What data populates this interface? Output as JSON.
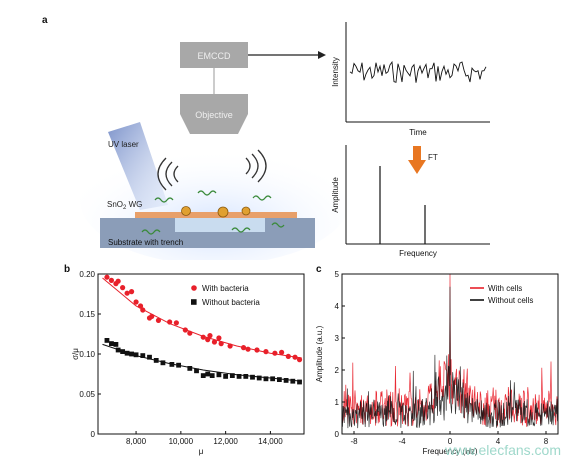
{
  "panel_a": {
    "letter": "a",
    "emccd_label": "EMCCD",
    "objective_label": "Objective",
    "uv_laser_label": "UV laser",
    "waveguide_label_main": "SnO",
    "waveguide_label_sub": "2",
    "waveguide_label_tail": " WG",
    "substrate_label": "Substrate with trench",
    "ft_label": "FT",
    "time_plot": {
      "ylabel": "Intensity",
      "xlabel": "Time"
    },
    "freq_plot": {
      "ylabel": "Amplitude",
      "xlabel": "Frequency"
    },
    "colors": {
      "box": "#a8a8a8",
      "substrate": "#8b9db8",
      "waveguide": "#e8a06a",
      "arrow": "#e87722",
      "particle": "#e0a030",
      "bacteria": "#3a8a3a"
    }
  },
  "chart_data": [
    {
      "id": "b",
      "letter": "b",
      "type": "scatter",
      "xlabel": "μ",
      "ylabel": "σ/μ",
      "xlim": [
        6300,
        15500
      ],
      "ylim": [
        0,
        0.2
      ],
      "xticks": [
        8000,
        10000,
        12000,
        14000
      ],
      "xtick_labels": [
        "8,000",
        "10,000",
        "12,000",
        "14,000"
      ],
      "yticks": [
        0,
        0.05,
        0.1,
        0.15,
        0.2
      ],
      "ytick_labels": [
        "0",
        "0.05",
        "0.10",
        "0.15",
        "0.20"
      ],
      "legend_position": "top-right",
      "series": [
        {
          "name": "With bacteria",
          "color": "#e8202a",
          "marker": "circle",
          "fit": [
            [
              6500,
              0.195
            ],
            [
              8000,
              0.16
            ],
            [
              9500,
              0.138
            ],
            [
              11000,
              0.122
            ],
            [
              12500,
              0.11
            ],
            [
              14000,
              0.101
            ],
            [
              15400,
              0.095
            ]
          ],
          "points": [
            [
              6700,
              0.196
            ],
            [
              6900,
              0.192
            ],
            [
              7100,
              0.188
            ],
            [
              7200,
              0.191
            ],
            [
              7400,
              0.183
            ],
            [
              7600,
              0.176
            ],
            [
              7800,
              0.178
            ],
            [
              8000,
              0.165
            ],
            [
              8200,
              0.16
            ],
            [
              8300,
              0.155
            ],
            [
              8600,
              0.145
            ],
            [
              8700,
              0.147
            ],
            [
              9000,
              0.142
            ],
            [
              9500,
              0.14
            ],
            [
              9800,
              0.139
            ],
            [
              10200,
              0.13
            ],
            [
              10400,
              0.126
            ],
            [
              11000,
              0.121
            ],
            [
              11200,
              0.118
            ],
            [
              11300,
              0.123
            ],
            [
              11500,
              0.115
            ],
            [
              11700,
              0.12
            ],
            [
              11800,
              0.113
            ],
            [
              12200,
              0.11
            ],
            [
              12800,
              0.108
            ],
            [
              13000,
              0.106
            ],
            [
              13400,
              0.105
            ],
            [
              13800,
              0.103
            ],
            [
              14200,
              0.101
            ],
            [
              14500,
              0.102
            ],
            [
              14800,
              0.097
            ],
            [
              15100,
              0.096
            ],
            [
              15300,
              0.093
            ]
          ]
        },
        {
          "name": "Without bacteria",
          "color": "#111111",
          "marker": "square",
          "fit": [
            [
              6500,
              0.112
            ],
            [
              8000,
              0.098
            ],
            [
              9500,
              0.088
            ],
            [
              11000,
              0.08
            ],
            [
              12500,
              0.074
            ],
            [
              14000,
              0.07
            ],
            [
              15400,
              0.066
            ]
          ],
          "points": [
            [
              6700,
              0.117
            ],
            [
              6900,
              0.113
            ],
            [
              7100,
              0.112
            ],
            [
              7200,
              0.105
            ],
            [
              7400,
              0.103
            ],
            [
              7600,
              0.101
            ],
            [
              7800,
              0.1
            ],
            [
              8000,
              0.099
            ],
            [
              8300,
              0.098
            ],
            [
              8600,
              0.096
            ],
            [
              8900,
              0.092
            ],
            [
              9200,
              0.089
            ],
            [
              9600,
              0.087
            ],
            [
              9900,
              0.086
            ],
            [
              10400,
              0.082
            ],
            [
              10700,
              0.079
            ],
            [
              11000,
              0.073
            ],
            [
              11200,
              0.075
            ],
            [
              11400,
              0.073
            ],
            [
              11700,
              0.074
            ],
            [
              12000,
              0.072
            ],
            [
              12300,
              0.073
            ],
            [
              12600,
              0.072
            ],
            [
              12900,
              0.072
            ],
            [
              13200,
              0.071
            ],
            [
              13500,
              0.07
            ],
            [
              13800,
              0.069
            ],
            [
              14100,
              0.069
            ],
            [
              14400,
              0.068
            ],
            [
              14700,
              0.067
            ],
            [
              15000,
              0.066
            ],
            [
              15300,
              0.065
            ]
          ]
        }
      ]
    },
    {
      "id": "c",
      "letter": "c",
      "type": "line",
      "xlabel": "Frequency (Hz)",
      "ylabel": "Amplitude (a.u.)",
      "xlim": [
        -9,
        9
      ],
      "ylim": [
        0,
        5
      ],
      "xticks": [
        -8,
        -4,
        0,
        4,
        8
      ],
      "xtick_labels": [
        "-8",
        "-4",
        "0",
        "4",
        "8"
      ],
      "yticks": [
        0,
        1,
        2,
        3,
        4,
        5
      ],
      "ytick_labels": [
        "0",
        "1",
        "2",
        "3",
        "4",
        "5"
      ],
      "legend_position": "top-right",
      "series": [
        {
          "name": "With cells",
          "color": "#e8202a",
          "baseline": 0.9,
          "noise": 0.8,
          "peak": 5.0
        },
        {
          "name": "Without cells",
          "color": "#111111",
          "baseline": 0.7,
          "noise": 0.7,
          "peak": 4.6
        }
      ]
    }
  ],
  "watermark": "www.elecfans.com"
}
